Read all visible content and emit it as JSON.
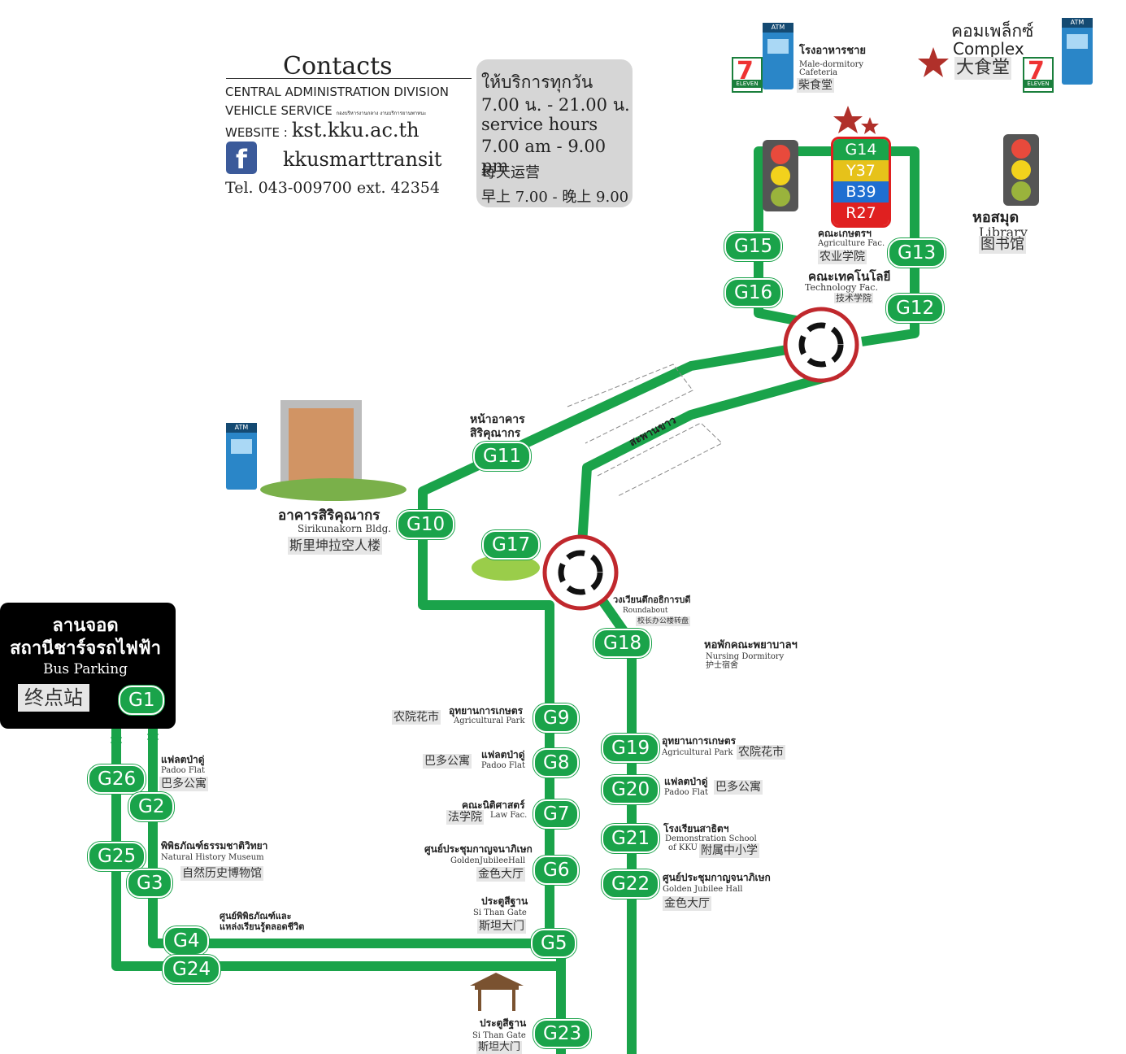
{
  "contacts": {
    "title": "Contacts",
    "division": "CENTRAL ADMINISTRATION DIVISION",
    "vehicle_service": "VEHICLE SERVICE",
    "vehicle_service_th": "กองบริหารงานกลาง งานบริการยานพาหนะ",
    "website_label": "WEBSITE :",
    "website": "kst.kku.ac.th",
    "facebook": "kkusmarttransit",
    "tel": "Tel. 043-009700 ext. 42354"
  },
  "hours": {
    "th_line1": "ให้บริการทุกวัน",
    "th_line2": "7.00 น. - 21.00 น.",
    "en_line1": "service hours",
    "en_line2": "7.00 am - 9.00 pm",
    "zh_line1": "每天运营",
    "zh_line2": "早上 7.00 - 晚上 9.00"
  },
  "bus_parking": {
    "th_line1": "ลานจอด",
    "th_line2": "สถานีชาร์จรถไฟฟ้า",
    "en": "Bus Parking",
    "zh": "终点站",
    "stop": "G1"
  },
  "colors": {
    "route_green": "#1aa34a",
    "g14": "#1aa34a",
    "y37": "#e6c21a",
    "b39": "#1f6fd1",
    "r27": "#e02020"
  },
  "top_stop_stack": [
    "G14",
    "Y37",
    "B39",
    "R27"
  ],
  "stops": {
    "g2": "G2",
    "g3": "G3",
    "g4": "G4",
    "g5": "G5",
    "g6": "G6",
    "g7": "G7",
    "g8": "G8",
    "g9": "G9",
    "g10": "G10",
    "g11": "G11",
    "g12": "G12",
    "g13": "G13",
    "g15": "G15",
    "g16": "G16",
    "g17": "G17",
    "g18": "G18",
    "g19": "G19",
    "g20": "G20",
    "g21": "G21",
    "g22": "G22",
    "g23": "G23",
    "g24": "G24",
    "g25": "G25",
    "g26": "G26"
  },
  "places": {
    "male_dorm_th": "โรงอาหารชาย",
    "male_dorm_en1": "Male-dormitory",
    "male_dorm_en2": "Cafeteria",
    "male_dorm_zh": "柴食堂",
    "complex_th": "คอมเพล็กซ์",
    "complex_en": "Complex",
    "complex_zh": "大食堂",
    "library_th": "หอสมุด",
    "library_en": "Library",
    "library_zh": "图书馆",
    "agri_fac_th": "คณะเกษตรฯ",
    "agri_fac_en": "Agriculture Fac.",
    "agri_fac_zh": "农业学院",
    "tech_fac_th": "คณะเทคโนโลยี",
    "tech_fac_en": "Technology Fac.",
    "tech_fac_zh": "技术学院",
    "siri_front_th1": "หน้าอาคาร",
    "siri_front_th2": "สิริคุณากร",
    "bridge_th": "สะพานขาว",
    "siri_th": "อาคารสิริคุณากร",
    "siri_en": "Sirikunakorn Bldg.",
    "siri_zh": "斯里坤拉空人楼",
    "round_th": "วงเวียนตึกอธิการบดี",
    "round_en": "Roundabout",
    "round_zh": "校长办公楼转盘",
    "nursing_th": "หอพักคณะพยาบาลฯ",
    "nursing_en": "Nursing Dormitory",
    "nursing_zh": "护士宿舍",
    "agripark_zh_l": "农院花市",
    "agripark_th_l": "อุทยานการเกษตร",
    "agripark_en_l": "Agricultural Park",
    "padoo_zh_l": "巴多公寓",
    "padoo_th_l": "แฟลตป่าดู่",
    "padoo_en_l": "Padoo Flat",
    "law_th": "คณะนิติศาสตร์",
    "law_zh": "法学院",
    "law_en": "Law Fac.",
    "golden_th_l": "ศูนย์ประชุมกาญจนาภิเษก",
    "golden_en_l": "GoldenJubileeHall",
    "golden_zh_l": "金色大厅",
    "gate_th_l": "ประตูสีฐาน",
    "gate_en_l": "Si Than Gate",
    "gate_zh_l": "斯坦大门",
    "agripark_th_r": "อุทยานการเกษตร",
    "agripark_en_r": "Agricultural Park",
    "agripark_zh_r": "农院花市",
    "padoo_th_r": "แฟลตป่าดู่",
    "padoo_en_r": "Padoo Flat",
    "padoo_zh_r": "巴多公寓",
    "demo_th": "โรงเรียนสาธิตฯ",
    "demo_en1": "Demonstration School",
    "demo_en2": "of KKU",
    "demo_zh": "附属中小学",
    "golden_th_r": "ศูนย์ประชุมกาญจนาภิเษก",
    "golden_en_r": "Golden Jubilee Hall",
    "golden_zh_r": "金色大厅",
    "padoo_th_g2": "แฟลตป่าดู่",
    "padoo_en_g2": "Padoo Flat",
    "padoo_zh_g2": "巴多公寓",
    "museum_th": "พิพิธภัณฑ์ธรรมชาติวิทยา",
    "museum_en": "Natural History Museum",
    "museum_zh": "自然历史博物馆",
    "learning_th1": "ศูนย์พิพิธภัณฑ์และ",
    "learning_th2": "แหล่งเรียนรู้ตลอดชีวิต",
    "gate2_th": "ประตูสีฐาน",
    "gate2_en": "Si Than Gate",
    "gate2_zh": "斯坦大门",
    "atm": "ATM",
    "seven": "7",
    "eleven": "ELEVEN"
  }
}
